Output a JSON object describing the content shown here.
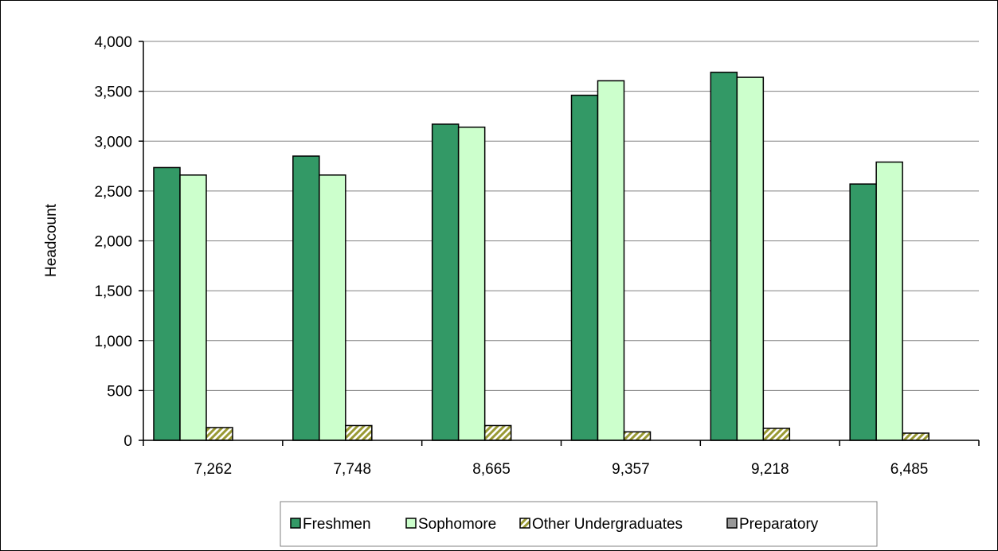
{
  "chart_data": {
    "type": "bar",
    "title": "",
    "xlabel": "",
    "ylabel": "Headcount",
    "categories": [
      "7,262",
      "7,748",
      "8,665",
      "9,357",
      "9,218",
      "6,485"
    ],
    "ylim": [
      0,
      4000
    ],
    "yticks": [
      0,
      500,
      1000,
      1500,
      2000,
      2500,
      3000,
      3500,
      4000
    ],
    "ytick_labels": [
      "0",
      "500",
      "1,000",
      "1,500",
      "2,000",
      "2,500",
      "3,000",
      "3,500",
      "4,000"
    ],
    "grid": "horizontal",
    "legend": "bottom",
    "series": [
      {
        "name": "Freshmen",
        "color": "#339966",
        "pattern": "solid",
        "values": [
          2735,
          2850,
          3170,
          3460,
          3690,
          2570
        ]
      },
      {
        "name": "Sophomore",
        "color": "#ccffcc",
        "pattern": "solid",
        "values": [
          2660,
          2660,
          3140,
          3605,
          3640,
          2790
        ]
      },
      {
        "name": "Other Undergraduates",
        "color": "#999933",
        "pattern": "diagonal",
        "values": [
          128,
          148,
          148,
          85,
          120,
          72
        ]
      },
      {
        "name": "Preparatory",
        "color": "#999999",
        "pattern": "solid",
        "values": [
          0,
          0,
          0,
          0,
          0,
          0
        ]
      }
    ]
  }
}
